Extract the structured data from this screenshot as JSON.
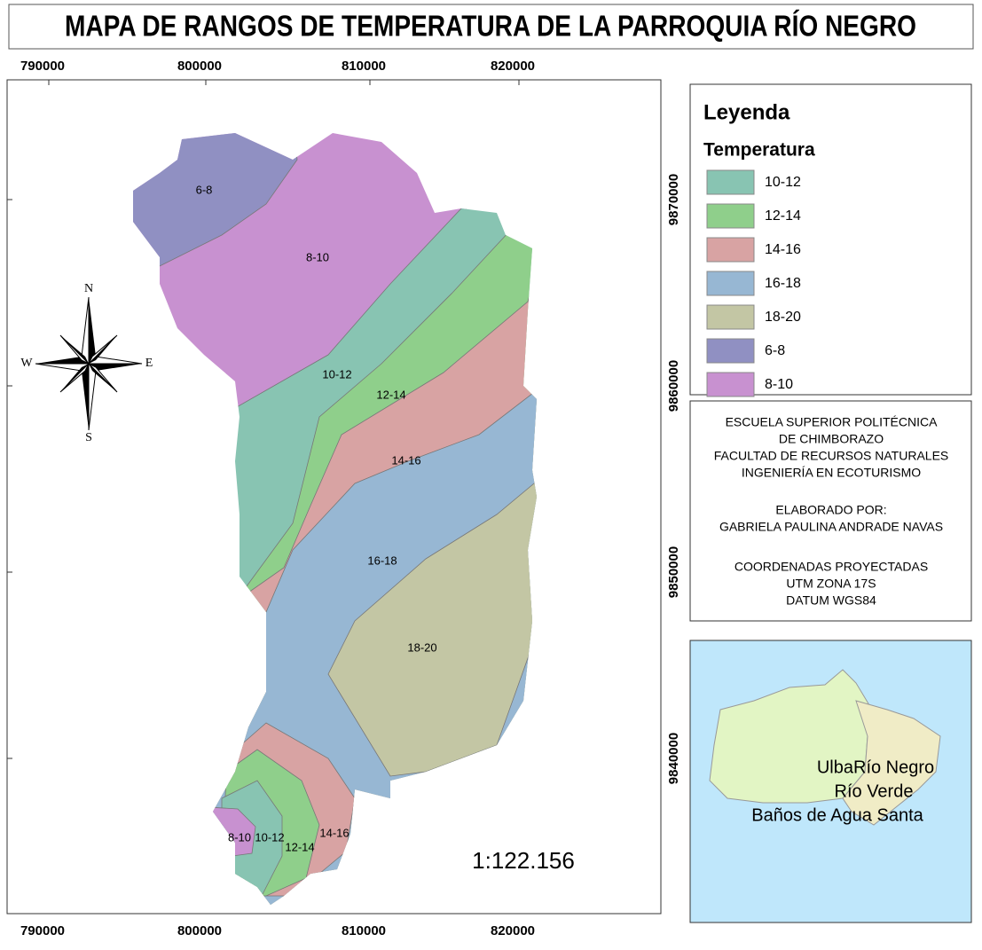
{
  "title": "MAPA DE RANGOS DE TEMPERATURA DE LA PARROQUIA RÍO NEGRO",
  "grid_labels": {
    "x": [
      790000,
      800000,
      810000,
      820000
    ],
    "y": [
      9870000,
      9860000,
      9850000,
      9840000
    ]
  },
  "legend": {
    "title": "Leyenda",
    "subtitle": "Temperatura",
    "items": [
      {
        "label": "10-12",
        "color": "#88c4b2"
      },
      {
        "label": "12-14",
        "color": "#8fcf8b"
      },
      {
        "label": "14-16",
        "color": "#d8a3a3"
      },
      {
        "label": "16-18",
        "color": "#97b7d3"
      },
      {
        "label": "18-20",
        "color": "#c3c6a4"
      },
      {
        "label": "6-8",
        "color": "#9090c2"
      },
      {
        "label": "8-10",
        "color": "#c891d0"
      }
    ]
  },
  "info": [
    "ESCUELA SUPERIOR POLITÉCNICA",
    "DE CHIMBORAZO",
    "FACULTAD DE RECURSOS NATURALES",
    "INGENIERÍA EN ECOTURISMO",
    "ELABORADO POR:",
    "GABRIELA PAULINA ANDRADE NAVAS",
    "COORDENADAS PROYECTADAS",
    "UTM ZONA 17S",
    "DATUM WGS84"
  ],
  "compass": {
    "n": "N",
    "s": "S",
    "e": "E",
    "w": "W"
  },
  "scale": "1:122.156",
  "zone_labels": [
    "6-8",
    "8-10",
    "10-12",
    "12-14",
    "14-16",
    "16-18",
    "18-20",
    "8-10",
    "10-12",
    "12-14",
    "14-16"
  ],
  "inset_labels": [
    "Ulba",
    "Río Negro",
    "Río Verde",
    "Baños de Agua Santa"
  ]
}
